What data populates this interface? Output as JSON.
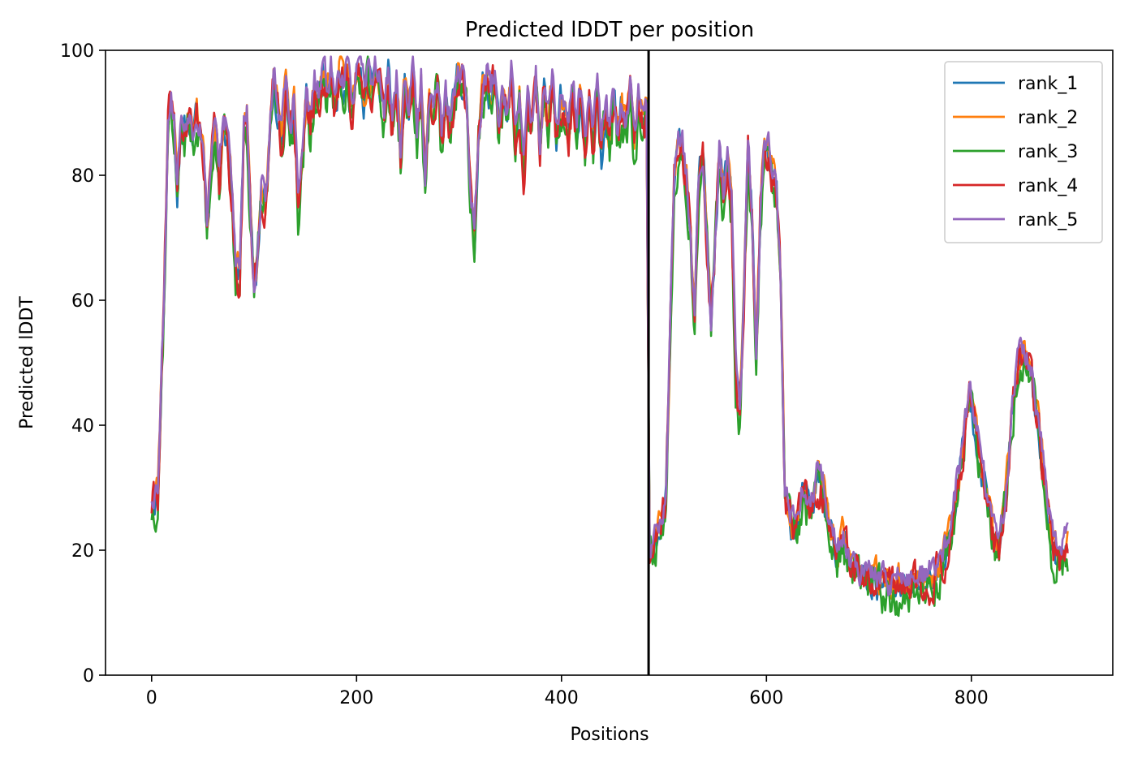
{
  "chart_data": {
    "type": "line",
    "title": "Predicted lDDT per position",
    "xlabel": "Positions",
    "ylabel": "Predicted lDDT",
    "xlim": [
      -45,
      938
    ],
    "ylim": [
      0,
      100
    ],
    "xticks": [
      0,
      200,
      400,
      600,
      800
    ],
    "yticks": [
      0,
      20,
      40,
      60,
      80,
      100
    ],
    "grid": false,
    "legend": "top-right",
    "divider_x": 485,
    "divider_color": "#000000",
    "x_max": 894,
    "anchors": [
      [
        0,
        28
      ],
      [
        6,
        30
      ],
      [
        12,
        60
      ],
      [
        16,
        88
      ],
      [
        19,
        93
      ],
      [
        22,
        88
      ],
      [
        25,
        78
      ],
      [
        28,
        88
      ],
      [
        32,
        87
      ],
      [
        36,
        90
      ],
      [
        40,
        87
      ],
      [
        44,
        90
      ],
      [
        47,
        88
      ],
      [
        50,
        86
      ],
      [
        54,
        72
      ],
      [
        58,
        82
      ],
      [
        62,
        90
      ],
      [
        66,
        80
      ],
      [
        70,
        88
      ],
      [
        74,
        86
      ],
      [
        78,
        78
      ],
      [
        82,
        66
      ],
      [
        86,
        64
      ],
      [
        90,
        88
      ],
      [
        93,
        90
      ],
      [
        97,
        72
      ],
      [
        100,
        62
      ],
      [
        103,
        66
      ],
      [
        107,
        78
      ],
      [
        111,
        76
      ],
      [
        115,
        84
      ],
      [
        119,
        96
      ],
      [
        123,
        92
      ],
      [
        127,
        86
      ],
      [
        131,
        95
      ],
      [
        135,
        86
      ],
      [
        139,
        92
      ],
      [
        143,
        76
      ],
      [
        147,
        82
      ],
      [
        151,
        93
      ],
      [
        155,
        88
      ],
      [
        159,
        94
      ],
      [
        163,
        92
      ],
      [
        167,
        96
      ],
      [
        171,
        94
      ],
      [
        175,
        97
      ],
      [
        179,
        91
      ],
      [
        183,
        97
      ],
      [
        187,
        95
      ],
      [
        191,
        97
      ],
      [
        195,
        90
      ],
      [
        199,
        96
      ],
      [
        203,
        97
      ],
      [
        207,
        93
      ],
      [
        211,
        96
      ],
      [
        215,
        95
      ],
      [
        219,
        97
      ],
      [
        223,
        94
      ],
      [
        227,
        90
      ],
      [
        231,
        96
      ],
      [
        235,
        88
      ],
      [
        239,
        95
      ],
      [
        243,
        84
      ],
      [
        247,
        95
      ],
      [
        251,
        90
      ],
      [
        255,
        97
      ],
      [
        259,
        86
      ],
      [
        263,
        95
      ],
      [
        267,
        80
      ],
      [
        271,
        92
      ],
      [
        275,
        90
      ],
      [
        279,
        96
      ],
      [
        283,
        86
      ],
      [
        287,
        92
      ],
      [
        291,
        88
      ],
      [
        295,
        92
      ],
      [
        299,
        97
      ],
      [
        303,
        96
      ],
      [
        307,
        92
      ],
      [
        311,
        78
      ],
      [
        315,
        70
      ],
      [
        319,
        86
      ],
      [
        323,
        94
      ],
      [
        327,
        96
      ],
      [
        331,
        93
      ],
      [
        335,
        96
      ],
      [
        339,
        88
      ],
      [
        343,
        94
      ],
      [
        347,
        90
      ],
      [
        351,
        96
      ],
      [
        355,
        86
      ],
      [
        359,
        92
      ],
      [
        363,
        80
      ],
      [
        367,
        92
      ],
      [
        371,
        88
      ],
      [
        375,
        95
      ],
      [
        379,
        84
      ],
      [
        383,
        94
      ],
      [
        387,
        88
      ],
      [
        391,
        96
      ],
      [
        395,
        86
      ],
      [
        399,
        92
      ],
      [
        403,
        90
      ],
      [
        407,
        86
      ],
      [
        411,
        94
      ],
      [
        415,
        88
      ],
      [
        419,
        94
      ],
      [
        423,
        84
      ],
      [
        427,
        92
      ],
      [
        431,
        86
      ],
      [
        435,
        94
      ],
      [
        439,
        84
      ],
      [
        443,
        92
      ],
      [
        447,
        86
      ],
      [
        451,
        94
      ],
      [
        455,
        86
      ],
      [
        459,
        92
      ],
      [
        463,
        88
      ],
      [
        467,
        94
      ],
      [
        471,
        86
      ],
      [
        475,
        92
      ],
      [
        479,
        88
      ],
      [
        483,
        90
      ],
      [
        486,
        20
      ],
      [
        490,
        22
      ],
      [
        494,
        24
      ],
      [
        498,
        25
      ],
      [
        502,
        28
      ],
      [
        506,
        55
      ],
      [
        510,
        80
      ],
      [
        514,
        86
      ],
      [
        518,
        84
      ],
      [
        522,
        80
      ],
      [
        526,
        70
      ],
      [
        530,
        58
      ],
      [
        534,
        80
      ],
      [
        538,
        84
      ],
      [
        542,
        70
      ],
      [
        546,
        56
      ],
      [
        550,
        70
      ],
      [
        554,
        84
      ],
      [
        558,
        76
      ],
      [
        562,
        84
      ],
      [
        566,
        76
      ],
      [
        570,
        48
      ],
      [
        574,
        42
      ],
      [
        578,
        60
      ],
      [
        582,
        84
      ],
      [
        586,
        74
      ],
      [
        590,
        50
      ],
      [
        594,
        74
      ],
      [
        598,
        86
      ],
      [
        602,
        84
      ],
      [
        606,
        80
      ],
      [
        610,
        78
      ],
      [
        614,
        62
      ],
      [
        618,
        30
      ],
      [
        622,
        26
      ],
      [
        626,
        24
      ],
      [
        630,
        24
      ],
      [
        634,
        28
      ],
      [
        638,
        30
      ],
      [
        642,
        26
      ],
      [
        646,
        28
      ],
      [
        650,
        32
      ],
      [
        654,
        30
      ],
      [
        658,
        28
      ],
      [
        662,
        24
      ],
      [
        666,
        22
      ],
      [
        670,
        20
      ],
      [
        674,
        22
      ],
      [
        678,
        20
      ],
      [
        682,
        18
      ],
      [
        686,
        18
      ],
      [
        690,
        17
      ],
      [
        694,
        16
      ],
      [
        698,
        15
      ],
      [
        702,
        15
      ],
      [
        706,
        16
      ],
      [
        710,
        15
      ],
      [
        714,
        15
      ],
      [
        718,
        15
      ],
      [
        722,
        14
      ],
      [
        726,
        15
      ],
      [
        730,
        15
      ],
      [
        734,
        15
      ],
      [
        738,
        14
      ],
      [
        742,
        15
      ],
      [
        746,
        15
      ],
      [
        750,
        16
      ],
      [
        754,
        15
      ],
      [
        758,
        16
      ],
      [
        762,
        16
      ],
      [
        766,
        17
      ],
      [
        770,
        18
      ],
      [
        774,
        20
      ],
      [
        778,
        22
      ],
      [
        782,
        25
      ],
      [
        786,
        30
      ],
      [
        790,
        35
      ],
      [
        794,
        40
      ],
      [
        798,
        45
      ],
      [
        802,
        42
      ],
      [
        806,
        38
      ],
      [
        810,
        34
      ],
      [
        814,
        30
      ],
      [
        818,
        26
      ],
      [
        822,
        22
      ],
      [
        826,
        20
      ],
      [
        830,
        24
      ],
      [
        834,
        30
      ],
      [
        838,
        38
      ],
      [
        842,
        46
      ],
      [
        846,
        50
      ],
      [
        850,
        52
      ],
      [
        854,
        50
      ],
      [
        858,
        48
      ],
      [
        862,
        44
      ],
      [
        866,
        40
      ],
      [
        870,
        34
      ],
      [
        874,
        28
      ],
      [
        878,
        22
      ],
      [
        882,
        20
      ],
      [
        886,
        19
      ],
      [
        890,
        20
      ],
      [
        894,
        21
      ]
    ],
    "series": [
      {
        "name": "rank_1",
        "color": "#1f77b4",
        "offset": -0.6,
        "amp": 2.2,
        "seed": 11
      },
      {
        "name": "rank_2",
        "color": "#ff7f0e",
        "offset": 0.2,
        "amp": 2.0,
        "seed": 23
      },
      {
        "name": "rank_3",
        "color": "#2ca02c",
        "offset": -1.8,
        "amp": 2.8,
        "seed": 37
      },
      {
        "name": "rank_4",
        "color": "#d62728",
        "offset": -0.8,
        "amp": 2.6,
        "seed": 41
      },
      {
        "name": "rank_5",
        "color": "#9467bd",
        "offset": 0.8,
        "amp": 2.0,
        "seed": 53
      }
    ]
  }
}
